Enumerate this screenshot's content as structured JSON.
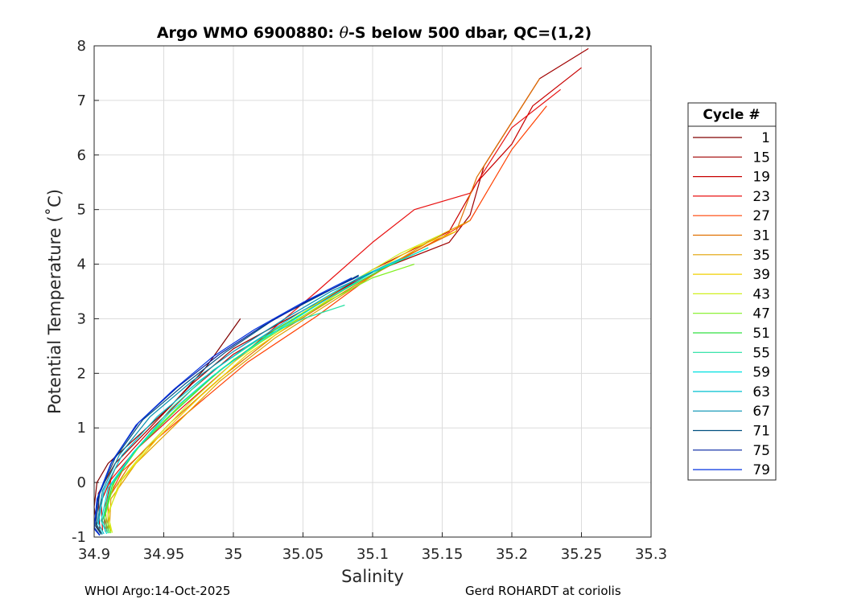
{
  "chart_data": {
    "type": "line",
    "title_prefix": "Argo WMO 6900880: ",
    "title_theta": "θ",
    "title_suffix": "-S below 500 dbar,  QC=(1,2)",
    "xlabel": "Salinity",
    "ylabel": "Potential Temperature (˚C)",
    "xlim": [
      34.9,
      35.3
    ],
    "ylim": [
      -1,
      8
    ],
    "xticks": [
      "34.9",
      "34.95",
      "35",
      "35.05",
      "35.1",
      "35.15",
      "35.2",
      "35.25",
      "35.3"
    ],
    "yticks": [
      "-1",
      "0",
      "1",
      "2",
      "3",
      "4",
      "5",
      "6",
      "7",
      "8"
    ],
    "grid": true,
    "legend": {
      "title": "Cycle #",
      "position": "right",
      "entries": [
        {
          "label": "1",
          "color": "#800000"
        },
        {
          "label": "15",
          "color": "#a00000"
        },
        {
          "label": "19",
          "color": "#c80000"
        },
        {
          "label": "23",
          "color": "#e81010"
        },
        {
          "label": "27",
          "color": "#ff4000"
        },
        {
          "label": "31",
          "color": "#e07000"
        },
        {
          "label": "35",
          "color": "#e0a000"
        },
        {
          "label": "39",
          "color": "#f0d000"
        },
        {
          "label": "43",
          "color": "#d0f020"
        },
        {
          "label": "47",
          "color": "#80f020"
        },
        {
          "label": "51",
          "color": "#30e040"
        },
        {
          "label": "55",
          "color": "#20e0a0"
        },
        {
          "label": "59",
          "color": "#00e0e0"
        },
        {
          "label": "63",
          "color": "#00c0d0"
        },
        {
          "label": "67",
          "color": "#0090b0"
        },
        {
          "label": "71",
          "color": "#005080"
        },
        {
          "label": "75",
          "color": "#0020a0"
        },
        {
          "label": "79",
          "color": "#0030e0"
        }
      ]
    },
    "series": [
      {
        "name": "1",
        "color": "#800000",
        "points": [
          [
            35.005,
            3.0
          ],
          [
            34.98,
            2.1
          ],
          [
            34.955,
            1.4
          ],
          [
            34.925,
            0.7
          ],
          [
            34.91,
            0.35
          ],
          [
            34.902,
            0.0
          ],
          [
            34.9,
            -0.45
          ],
          [
            34.902,
            -0.82
          ],
          [
            34.905,
            -0.92
          ]
        ]
      },
      {
        "name": "15",
        "color": "#a00000",
        "points": [
          [
            35.255,
            7.95
          ],
          [
            35.22,
            7.4
          ],
          [
            35.2,
            6.6
          ],
          [
            35.18,
            5.8
          ],
          [
            35.17,
            4.9
          ],
          [
            35.155,
            4.4
          ],
          [
            35.1,
            3.85
          ],
          [
            35.05,
            3.15
          ],
          [
            35.0,
            2.45
          ],
          [
            34.97,
            1.8
          ],
          [
            34.94,
            1.0
          ],
          [
            34.915,
            0.35
          ],
          [
            34.903,
            -0.2
          ],
          [
            34.904,
            -0.85
          ]
        ]
      },
      {
        "name": "19",
        "color": "#c80000",
        "points": [
          [
            35.25,
            7.6
          ],
          [
            35.215,
            6.9
          ],
          [
            35.2,
            6.2
          ],
          [
            35.175,
            5.5
          ],
          [
            35.155,
            4.6
          ],
          [
            35.1,
            3.9
          ],
          [
            35.05,
            3.1
          ],
          [
            35.0,
            2.35
          ],
          [
            34.97,
            1.7
          ],
          [
            34.94,
            0.95
          ],
          [
            34.915,
            0.25
          ],
          [
            34.905,
            -0.35
          ],
          [
            34.906,
            -0.88
          ]
        ]
      },
      {
        "name": "23",
        "color": "#e81010",
        "points": [
          [
            35.235,
            7.2
          ],
          [
            35.2,
            6.5
          ],
          [
            35.17,
            5.3
          ],
          [
            35.13,
            5.0
          ],
          [
            35.1,
            4.4
          ],
          [
            35.06,
            3.5
          ],
          [
            35.0,
            2.2
          ],
          [
            34.96,
            1.3
          ],
          [
            34.93,
            0.6
          ],
          [
            34.912,
            0.05
          ],
          [
            34.907,
            -0.6
          ],
          [
            34.908,
            -0.9
          ]
        ]
      },
      {
        "name": "27",
        "color": "#ff4000",
        "points": [
          [
            35.225,
            6.9
          ],
          [
            35.2,
            6.1
          ],
          [
            35.17,
            4.8
          ],
          [
            35.15,
            4.5
          ],
          [
            35.1,
            3.8
          ],
          [
            35.06,
            3.05
          ],
          [
            35.01,
            2.2
          ],
          [
            34.975,
            1.45
          ],
          [
            34.945,
            0.8
          ],
          [
            34.92,
            0.2
          ],
          [
            34.908,
            -0.4
          ],
          [
            34.909,
            -0.9
          ]
        ]
      },
      {
        "name": "31",
        "color": "#e07000",
        "points": [
          [
            35.22,
            7.4
          ],
          [
            35.2,
            6.6
          ],
          [
            35.175,
            5.6
          ],
          [
            35.16,
            4.6
          ],
          [
            35.12,
            4.1
          ],
          [
            35.08,
            3.5
          ],
          [
            35.03,
            2.7
          ],
          [
            34.99,
            1.9
          ],
          [
            34.955,
            1.1
          ],
          [
            34.925,
            0.3
          ],
          [
            34.91,
            -0.3
          ],
          [
            34.91,
            -0.88
          ]
        ]
      },
      {
        "name": "35",
        "color": "#e0a000",
        "points": [
          [
            35.17,
            4.8
          ],
          [
            35.15,
            4.55
          ],
          [
            35.11,
            3.95
          ],
          [
            35.07,
            3.3
          ],
          [
            35.03,
            2.65
          ],
          [
            34.99,
            1.85
          ],
          [
            34.96,
            1.1
          ],
          [
            34.93,
            0.35
          ],
          [
            34.912,
            -0.3
          ],
          [
            34.911,
            -0.85
          ]
        ]
      },
      {
        "name": "39",
        "color": "#f0d000",
        "points": [
          [
            35.16,
            4.6
          ],
          [
            35.13,
            4.3
          ],
          [
            35.09,
            3.7
          ],
          [
            35.05,
            3.05
          ],
          [
            35.01,
            2.35
          ],
          [
            34.975,
            1.55
          ],
          [
            34.945,
            0.8
          ],
          [
            34.92,
            0.05
          ],
          [
            34.91,
            -0.55
          ],
          [
            34.912,
            -0.9
          ]
        ]
      },
      {
        "name": "43",
        "color": "#d0f020",
        "points": [
          [
            35.15,
            4.55
          ],
          [
            35.12,
            4.2
          ],
          [
            35.08,
            3.6
          ],
          [
            35.04,
            2.95
          ],
          [
            35.0,
            2.2
          ],
          [
            34.97,
            1.5
          ],
          [
            34.94,
            0.7
          ],
          [
            34.918,
            0.0
          ],
          [
            34.91,
            -0.6
          ],
          [
            34.913,
            -0.92
          ]
        ]
      },
      {
        "name": "47",
        "color": "#80f020",
        "points": [
          [
            35.13,
            4.0
          ],
          [
            35.1,
            3.75
          ],
          [
            35.07,
            3.35
          ],
          [
            35.04,
            2.9
          ],
          [
            35.0,
            2.25
          ],
          [
            34.965,
            1.5
          ],
          [
            34.935,
            0.75
          ],
          [
            34.915,
            0.05
          ],
          [
            34.908,
            -0.6
          ],
          [
            34.912,
            -0.93
          ]
        ]
      },
      {
        "name": "51",
        "color": "#30e040",
        "points": [
          [
            35.14,
            4.3
          ],
          [
            35.11,
            3.95
          ],
          [
            35.07,
            3.4
          ],
          [
            35.03,
            2.8
          ],
          [
            34.99,
            2.05
          ],
          [
            34.96,
            1.35
          ],
          [
            34.93,
            0.6
          ],
          [
            34.913,
            -0.05
          ],
          [
            34.907,
            -0.65
          ],
          [
            34.911,
            -0.93
          ]
        ]
      },
      {
        "name": "55",
        "color": "#20e0a0",
        "points": [
          [
            35.08,
            3.25
          ],
          [
            35.05,
            3.0
          ],
          [
            35.02,
            2.65
          ],
          [
            34.985,
            2.05
          ],
          [
            34.955,
            1.35
          ],
          [
            34.93,
            0.6
          ],
          [
            34.912,
            -0.05
          ],
          [
            34.906,
            -0.7
          ],
          [
            34.91,
            -0.93
          ]
        ]
      },
      {
        "name": "59",
        "color": "#00e0e0",
        "points": [
          [
            35.14,
            4.3
          ],
          [
            35.1,
            3.85
          ],
          [
            35.06,
            3.25
          ],
          [
            35.02,
            2.6
          ],
          [
            34.985,
            1.95
          ],
          [
            34.955,
            1.3
          ],
          [
            34.928,
            0.55
          ],
          [
            34.91,
            -0.1
          ],
          [
            34.905,
            -0.7
          ],
          [
            34.909,
            -0.94
          ]
        ]
      },
      {
        "name": "63",
        "color": "#00c0d0",
        "points": [
          [
            35.12,
            4.1
          ],
          [
            35.09,
            3.75
          ],
          [
            35.05,
            3.15
          ],
          [
            35.01,
            2.5
          ],
          [
            34.975,
            1.85
          ],
          [
            34.945,
            1.2
          ],
          [
            34.92,
            0.5
          ],
          [
            34.907,
            -0.15
          ],
          [
            34.903,
            -0.75
          ],
          [
            34.907,
            -0.94
          ]
        ]
      },
      {
        "name": "67",
        "color": "#0090b0",
        "points": [
          [
            35.1,
            3.85
          ],
          [
            35.07,
            3.5
          ],
          [
            35.04,
            3.05
          ],
          [
            35.0,
            2.4
          ],
          [
            34.97,
            1.85
          ],
          [
            34.94,
            1.2
          ],
          [
            34.918,
            0.5
          ],
          [
            34.906,
            -0.15
          ],
          [
            34.902,
            -0.78
          ],
          [
            34.906,
            -0.95
          ]
        ]
      },
      {
        "name": "71",
        "color": "#005080",
        "points": [
          [
            35.09,
            3.8
          ],
          [
            35.06,
            3.4
          ],
          [
            35.03,
            3.0
          ],
          [
            34.995,
            2.4
          ],
          [
            34.965,
            1.8
          ],
          [
            34.935,
            1.15
          ],
          [
            34.915,
            0.45
          ],
          [
            34.904,
            -0.2
          ],
          [
            34.901,
            -0.8
          ],
          [
            34.905,
            -0.95
          ]
        ]
      },
      {
        "name": "75",
        "color": "#0020a0",
        "points": [
          [
            35.09,
            3.78
          ],
          [
            35.055,
            3.35
          ],
          [
            35.02,
            2.85
          ],
          [
            34.99,
            2.35
          ],
          [
            34.96,
            1.75
          ],
          [
            34.932,
            1.1
          ],
          [
            34.913,
            0.4
          ],
          [
            34.903,
            -0.25
          ],
          [
            34.9,
            -0.82
          ],
          [
            34.904,
            -0.96
          ]
        ]
      },
      {
        "name": "79",
        "color": "#0030e0",
        "points": [
          [
            35.085,
            3.75
          ],
          [
            35.05,
            3.3
          ],
          [
            35.015,
            2.8
          ],
          [
            34.985,
            2.3
          ],
          [
            34.957,
            1.7
          ],
          [
            34.93,
            1.05
          ],
          [
            34.912,
            0.35
          ],
          [
            34.902,
            -0.3
          ],
          [
            34.9,
            -0.85
          ],
          [
            34.904,
            -0.97
          ]
        ]
      }
    ]
  },
  "footer": {
    "left": "WHOI Argo:14-Oct-2025",
    "right": "Gerd ROHARDT at coriolis"
  }
}
